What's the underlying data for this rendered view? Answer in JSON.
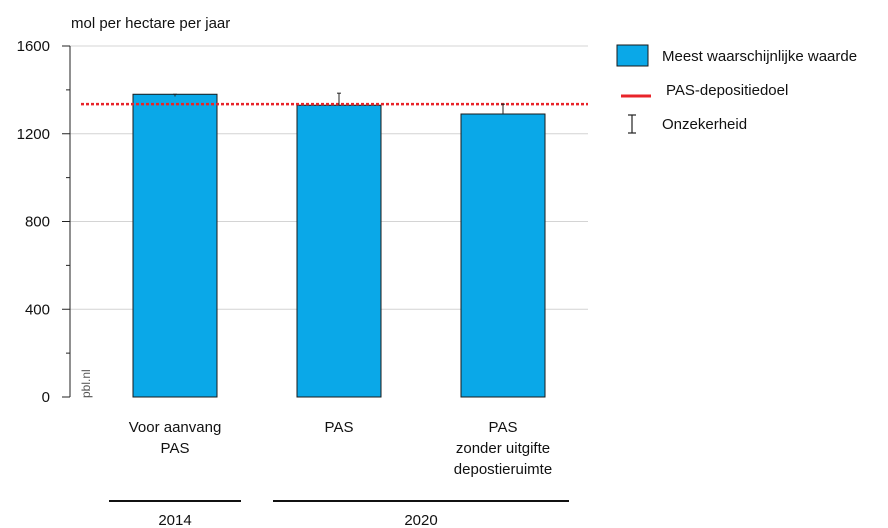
{
  "chart_data": {
    "type": "bar",
    "unit_label": "mol per hectare per jaar",
    "categories": [
      [
        "Voor aanvang",
        "PAS"
      ],
      [
        "PAS"
      ],
      [
        "PAS",
        "zonder uitgifte",
        "depostieruimte"
      ]
    ],
    "series": [
      {
        "name": "Meest waarschijnlijke waarde",
        "values": [
          1380,
          1330,
          1290
        ],
        "color": "#0aa8e8"
      }
    ],
    "error_bars": [
      {
        "low": 1370,
        "high": 1380
      },
      {
        "low": 1330,
        "high": 1385
      },
      {
        "low": 1290,
        "high": 1335
      }
    ],
    "target_line": {
      "name": "PAS-depositiedoel",
      "value": 1335,
      "color": "#e8242a"
    },
    "uncertainty_legend_label": "Onzekerheid",
    "ylim": [
      0,
      1600
    ],
    "yticks": [
      "0",
      "400",
      "800",
      "1200",
      "1600"
    ],
    "ytick_values": [
      0,
      400,
      800,
      1200,
      1600
    ],
    "groups": [
      {
        "label": "2014",
        "categories": [
          0
        ]
      },
      {
        "label": "2020",
        "categories": [
          1,
          2
        ]
      }
    ],
    "source_label": "pbl.nl",
    "grid": true,
    "legend_position": "top-right"
  }
}
